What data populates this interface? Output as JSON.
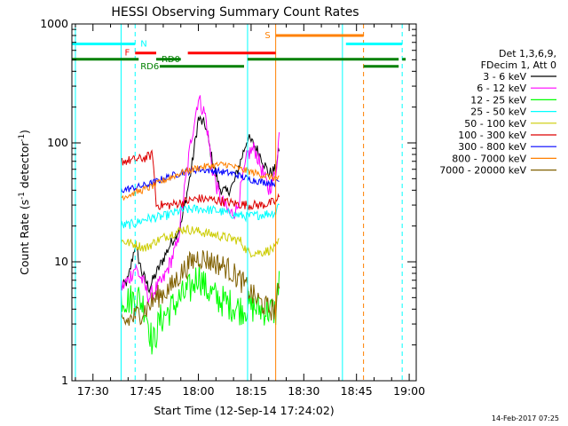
{
  "chart_data": {
    "type": "line",
    "title": "HESSI Observing Summary Count Rates",
    "xlabel": "Start Time (12-Sep-14 17:24:02)",
    "ylabel_main": "Count Rate (s",
    "ylabel_sup1": "-1",
    "ylabel_mid": " detector",
    "ylabel_sup2": "-1",
    "ylabel_end": ")",
    "y_scale": "log",
    "xlim": [
      "17:24",
      "19:02"
    ],
    "ylim": [
      1,
      1000
    ],
    "x_ticks": [
      "17:30",
      "17:45",
      "18:00",
      "18:15",
      "18:30",
      "18:45",
      "19:00"
    ],
    "y_ticks": [
      {
        "value": 1,
        "label": "1"
      },
      {
        "value": 10,
        "label": "10"
      },
      {
        "value": 100,
        "label": "100"
      },
      {
        "value": 1000,
        "label": "1000"
      }
    ],
    "legend": {
      "placement": "right",
      "header": [
        "Det 1,3,6,9,",
        "FDecim 1, Att 0"
      ],
      "entries": [
        {
          "label": "3 - 6 keV",
          "color": "#000000"
        },
        {
          "label": "6 - 12 keV",
          "color": "#ff00ff"
        },
        {
          "label": "12 - 25 keV",
          "color": "#00ff00"
        },
        {
          "label": "25 - 50 keV",
          "color": "#00ffff"
        },
        {
          "label": "50 - 100 keV",
          "color": "#cccc00"
        },
        {
          "label": "100 - 300 keV",
          "color": "#dd0000"
        },
        {
          "label": "300 - 800 keV",
          "color": "#0000ff"
        },
        {
          "label": "800 - 7000 keV",
          "color": "#ff8000"
        },
        {
          "label": "7000 - 20000 keV",
          "color": "#806000"
        }
      ]
    },
    "series": [
      {
        "name": "3 - 6 keV",
        "color": "#000000",
        "noise": 0.05,
        "points": [
          [
            "17:38",
            6
          ],
          [
            "17:40",
            7
          ],
          [
            "17:42",
            14
          ],
          [
            "17:44",
            8
          ],
          [
            "17:46",
            6
          ],
          [
            "17:48",
            8
          ],
          [
            "17:52",
            14
          ],
          [
            "17:55",
            20
          ],
          [
            "17:58",
            60
          ],
          [
            "18:00",
            160
          ],
          [
            "18:02",
            140
          ],
          [
            "18:04",
            70
          ],
          [
            "18:06",
            42
          ],
          [
            "18:08",
            38
          ],
          [
            "18:10",
            45
          ],
          [
            "18:12",
            70
          ],
          [
            "18:14",
            110
          ],
          [
            "18:16",
            95
          ],
          [
            "18:18",
            75
          ],
          [
            "18:20",
            55
          ],
          [
            "18:22",
            60
          ],
          [
            "18:23",
            90
          ]
        ]
      },
      {
        "name": "6 - 12 keV",
        "color": "#ff00ff",
        "noise": 0.07,
        "points": [
          [
            "17:38",
            6
          ],
          [
            "17:40",
            7
          ],
          [
            "17:42",
            9
          ],
          [
            "17:44",
            7
          ],
          [
            "17:46",
            5
          ],
          [
            "17:48",
            6
          ],
          [
            "17:50",
            7
          ],
          [
            "17:54",
            14
          ],
          [
            "17:58",
            110
          ],
          [
            "18:00",
            240
          ],
          [
            "18:02",
            170
          ],
          [
            "18:04",
            60
          ],
          [
            "18:06",
            35
          ],
          [
            "18:09",
            25
          ],
          [
            "18:11",
            28
          ],
          [
            "18:14",
            80
          ],
          [
            "18:16",
            90
          ],
          [
            "18:18",
            60
          ],
          [
            "18:20",
            40
          ],
          [
            "18:22",
            55
          ],
          [
            "18:23",
            120
          ]
        ]
      },
      {
        "name": "12 - 25 keV",
        "color": "#00ff00",
        "noise": 0.14,
        "points": [
          [
            "17:38",
            5
          ],
          [
            "17:40",
            4.8
          ],
          [
            "17:43",
            5
          ],
          [
            "17:45",
            4
          ],
          [
            "17:47",
            2
          ],
          [
            "17:49",
            3.2
          ],
          [
            "17:52",
            4
          ],
          [
            "17:55",
            5
          ],
          [
            "17:58",
            6
          ],
          [
            "18:00",
            8
          ],
          [
            "18:02",
            6
          ],
          [
            "18:05",
            5
          ],
          [
            "18:08",
            4.5
          ],
          [
            "18:12",
            4
          ],
          [
            "18:14",
            4.2
          ],
          [
            "18:18",
            4
          ],
          [
            "18:22",
            3.8
          ],
          [
            "18:23",
            8
          ]
        ]
      },
      {
        "name": "25 - 50 keV",
        "color": "#00ffff",
        "noise": 0.04,
        "points": [
          [
            "17:38",
            20
          ],
          [
            "17:42",
            21
          ],
          [
            "17:45",
            23
          ],
          [
            "17:50",
            24
          ],
          [
            "17:55",
            27
          ],
          [
            "18:00",
            28
          ],
          [
            "18:05",
            27
          ],
          [
            "18:10",
            25
          ],
          [
            "18:14",
            24
          ],
          [
            "18:18",
            25
          ],
          [
            "18:22",
            26
          ],
          [
            "18:23",
            32
          ]
        ]
      },
      {
        "name": "50 - 100 keV",
        "color": "#cccc00",
        "noise": 0.04,
        "points": [
          [
            "17:38",
            15
          ],
          [
            "17:42",
            14
          ],
          [
            "17:45",
            13
          ],
          [
            "17:48",
            15
          ],
          [
            "17:52",
            17
          ],
          [
            "17:56",
            19
          ],
          [
            "18:00",
            18
          ],
          [
            "18:04",
            17
          ],
          [
            "18:08",
            16
          ],
          [
            "18:12",
            15
          ],
          [
            "18:14",
            12
          ],
          [
            "18:18",
            12
          ],
          [
            "18:22",
            13
          ],
          [
            "18:23",
            15
          ]
        ]
      },
      {
        "name": "100 - 300 keV",
        "color": "#dd0000",
        "noise": 0.04,
        "points": [
          [
            "17:38",
            70
          ],
          [
            "17:42",
            72
          ],
          [
            "17:45",
            75
          ],
          [
            "17:47",
            80
          ],
          [
            "17:48",
            30
          ],
          [
            "17:52",
            30
          ],
          [
            "17:56",
            32
          ],
          [
            "18:00",
            34
          ],
          [
            "18:05",
            33
          ],
          [
            "18:10",
            31
          ],
          [
            "18:14",
            30
          ],
          [
            "18:18",
            30
          ],
          [
            "18:22",
            32
          ],
          [
            "18:23",
            35
          ]
        ]
      },
      {
        "name": "300 - 800 keV",
        "color": "#0000ff",
        "noise": 0.03,
        "points": [
          [
            "17:38",
            40
          ],
          [
            "17:42",
            42
          ],
          [
            "17:46",
            45
          ],
          [
            "17:50",
            50
          ],
          [
            "17:55",
            56
          ],
          [
            "18:00",
            60
          ],
          [
            "18:05",
            58
          ],
          [
            "18:10",
            55
          ],
          [
            "18:14",
            50
          ],
          [
            "18:18",
            47
          ],
          [
            "18:22",
            46
          ],
          [
            "18:23",
            48
          ]
        ]
      },
      {
        "name": "800 - 7000 keV",
        "color": "#ff8000",
        "noise": 0.03,
        "points": [
          [
            "17:38",
            35
          ],
          [
            "17:42",
            38
          ],
          [
            "17:46",
            42
          ],
          [
            "17:50",
            48
          ],
          [
            "17:55",
            56
          ],
          [
            "18:00",
            62
          ],
          [
            "18:05",
            65
          ],
          [
            "18:08",
            66
          ],
          [
            "18:12",
            60
          ],
          [
            "18:16",
            56
          ],
          [
            "18:20",
            52
          ],
          [
            "18:23",
            50
          ]
        ]
      },
      {
        "name": "7000 - 20000 keV",
        "color": "#806000",
        "noise": 0.1,
        "points": [
          [
            "17:38",
            3
          ],
          [
            "17:40",
            3.2
          ],
          [
            "17:42",
            3.5
          ],
          [
            "17:45",
            4
          ],
          [
            "17:48",
            5
          ],
          [
            "17:52",
            6
          ],
          [
            "17:55",
            8
          ],
          [
            "17:58",
            10
          ],
          [
            "18:00",
            11
          ],
          [
            "18:04",
            10
          ],
          [
            "18:08",
            9
          ],
          [
            "18:12",
            7
          ],
          [
            "18:16",
            5
          ],
          [
            "18:20",
            4
          ],
          [
            "18:22",
            4
          ],
          [
            "18:23",
            6
          ]
        ]
      }
    ],
    "vertical_lines": [
      {
        "time": "17:25",
        "color": "#00ffff",
        "style": "solid"
      },
      {
        "time": "17:38",
        "color": "#00ffff",
        "style": "solid"
      },
      {
        "time": "17:42",
        "color": "#00ffff",
        "style": "dashed"
      },
      {
        "time": "18:14",
        "color": "#00ffff",
        "style": "solid"
      },
      {
        "time": "18:22",
        "color": "#ff8000",
        "style": "solid"
      },
      {
        "time": "18:41",
        "color": "#00ffff",
        "style": "solid"
      },
      {
        "time": "18:47",
        "color": "#ff8000",
        "style": "dashed"
      },
      {
        "time": "18:58",
        "color": "#00ffff",
        "style": "dashed"
      }
    ],
    "flag_bars": [
      {
        "label": "N",
        "color": "#00ffff",
        "value": 680,
        "segments": [
          [
            "17:24",
            "17:42"
          ],
          [
            "18:42",
            "18:58"
          ]
        ],
        "label_at": "17:43",
        "label_side": "right"
      },
      {
        "label": "F",
        "color": "#ff0000",
        "value": 570,
        "segments": [
          [
            "17:42",
            "17:48"
          ],
          [
            "17:57",
            "18:22"
          ]
        ],
        "label_at": "17:41",
        "label_side": "left"
      },
      {
        "label": "S",
        "color": "#ff8000",
        "value": 800,
        "segments": [
          [
            "18:22",
            "18:47"
          ]
        ],
        "label_at": "18:21",
        "label_side": "left"
      },
      {
        "label": "RD0",
        "color": "#008000",
        "value": 505,
        "segments": [
          [
            "17:24",
            "17:43"
          ],
          [
            "17:48",
            "17:55"
          ],
          [
            "18:14",
            "18:47"
          ],
          [
            "18:47",
            "18:57"
          ],
          [
            "18:58",
            "18:59"
          ]
        ],
        "label_at": "17:49",
        "label_side": "right"
      },
      {
        "label": "RD6",
        "color": "#008000",
        "value": 440,
        "segments": [
          [
            "17:49",
            "18:13"
          ],
          [
            "18:47",
            "18:57"
          ]
        ],
        "label_at": "17:43",
        "label_side": "right"
      }
    ],
    "timestamp": "14-Feb-2017 07:25"
  }
}
